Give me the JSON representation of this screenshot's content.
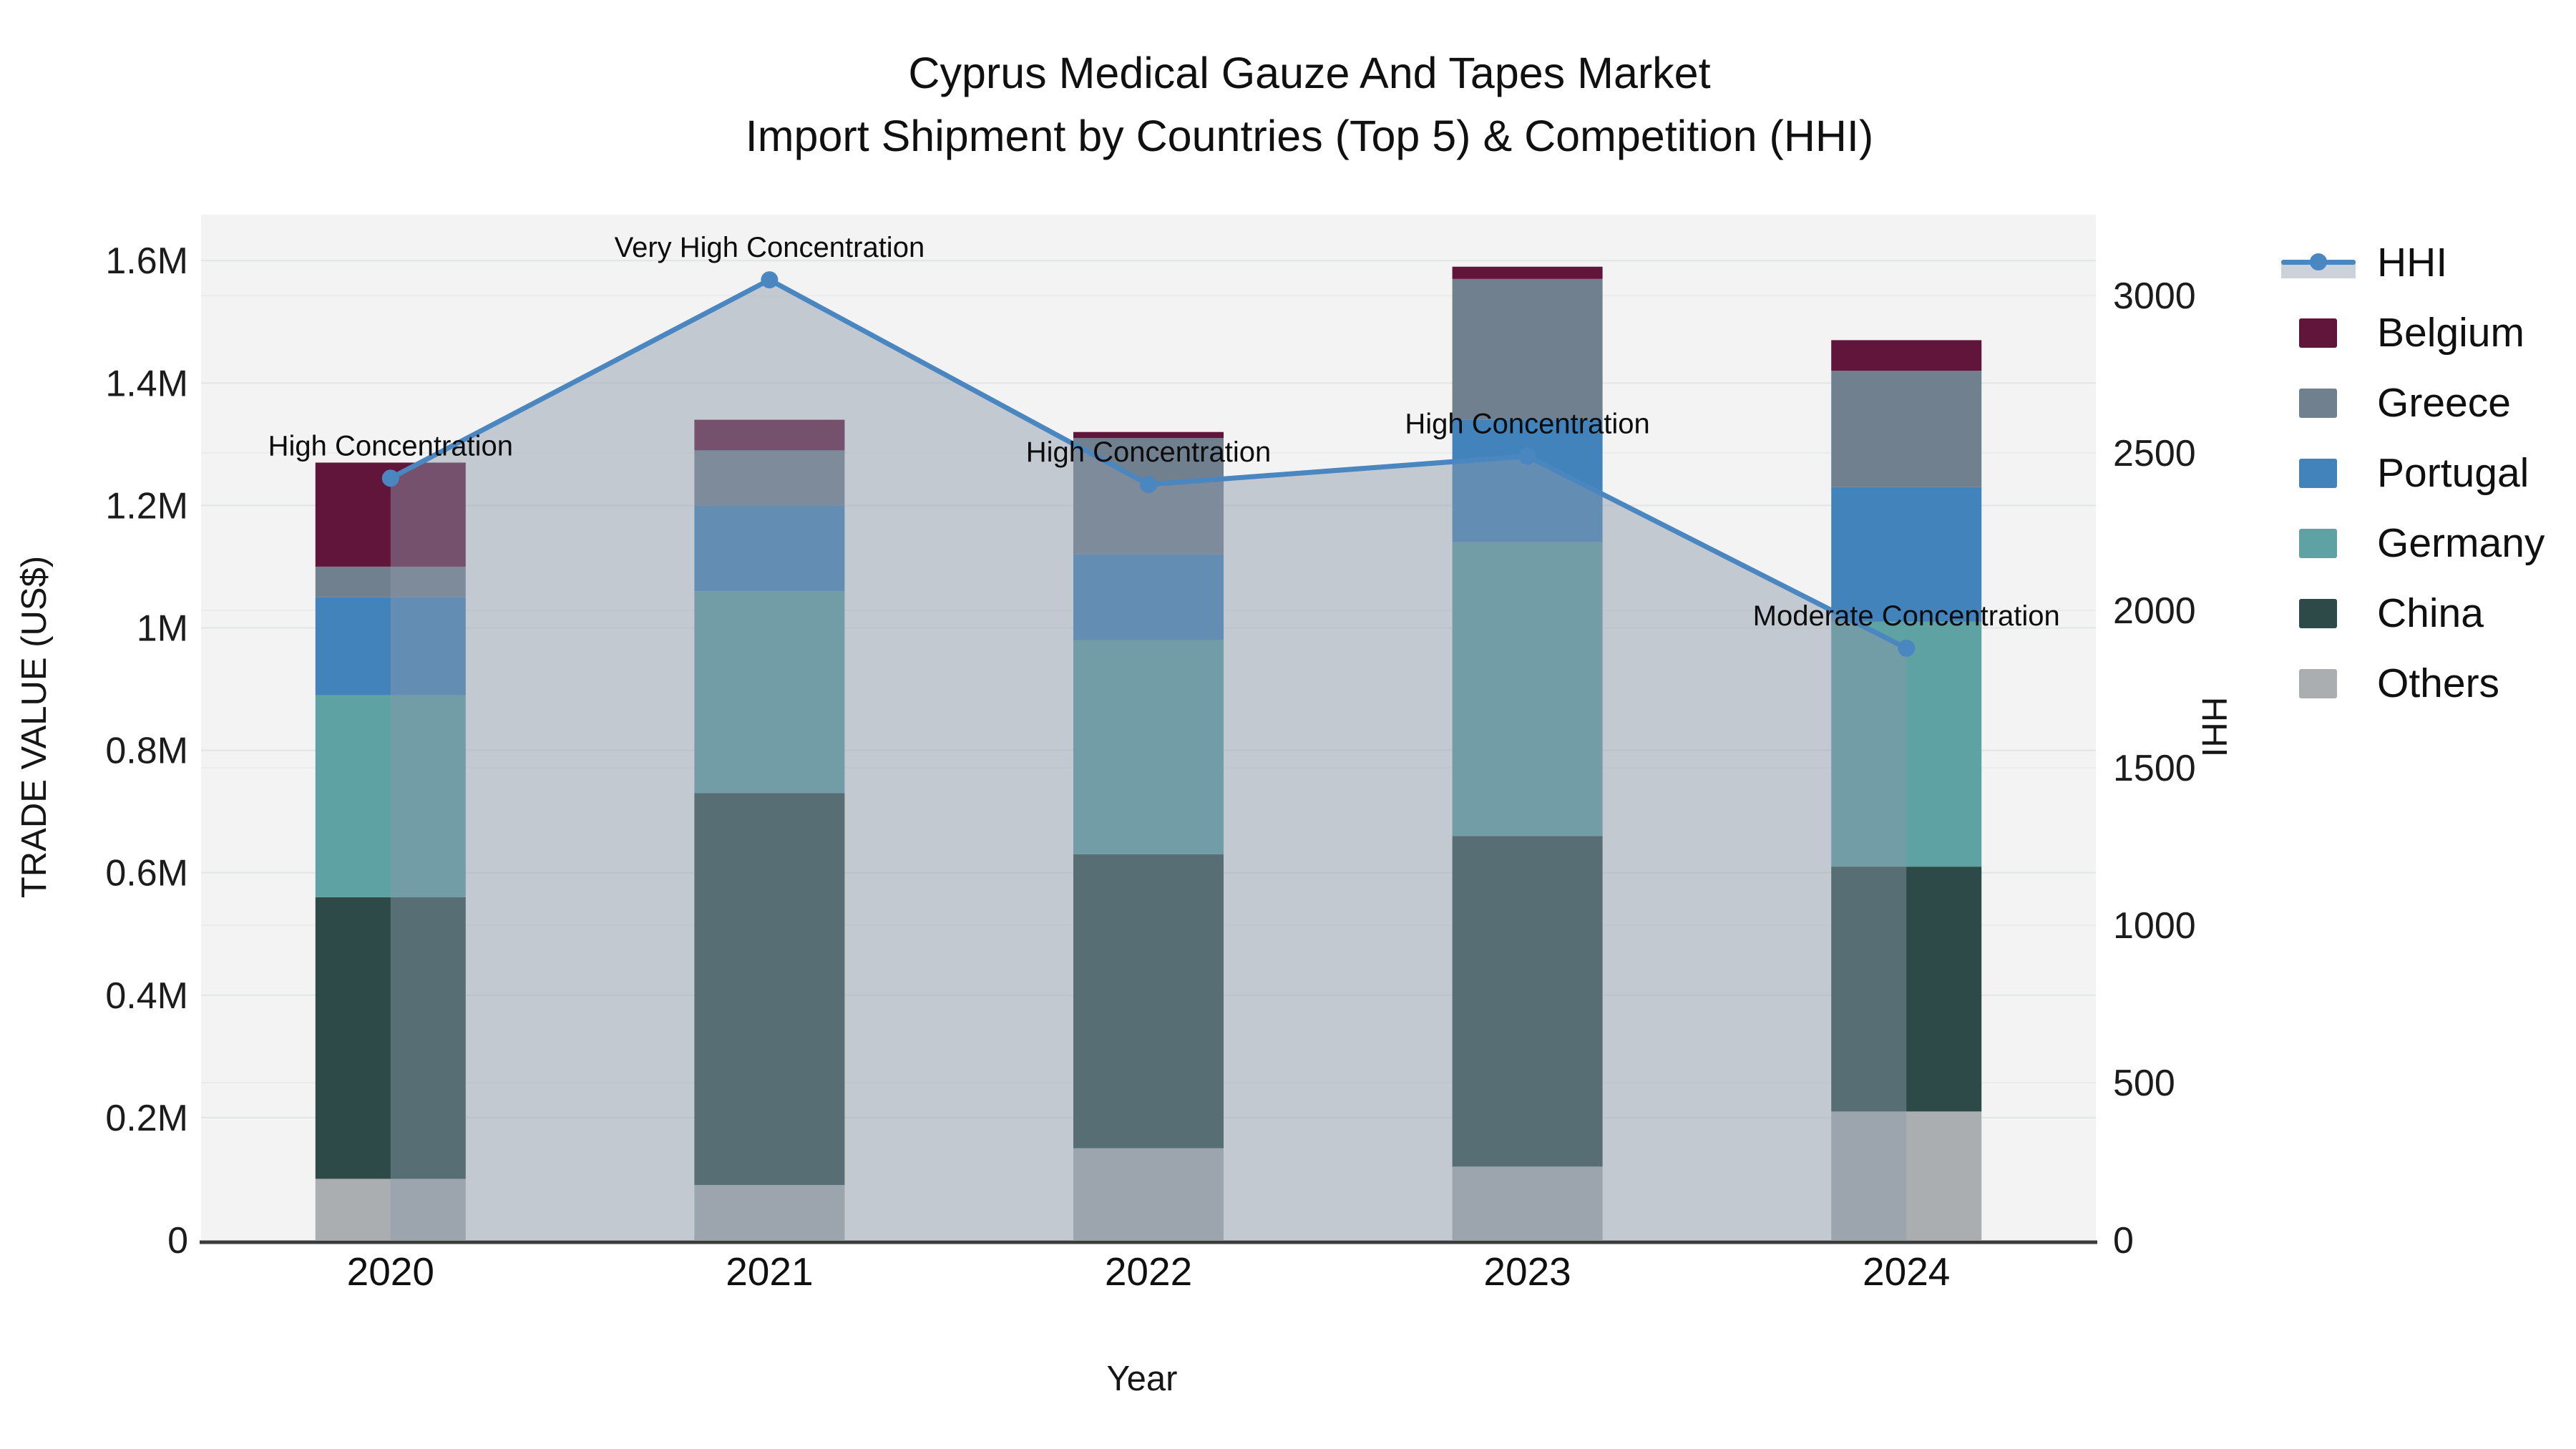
{
  "title": {
    "line1": "Cyprus Medical Gauze And Tapes Market",
    "line2": "Import Shipment by Countries (Top 5) & Competition (HHI)"
  },
  "axes": {
    "left": {
      "title": "TRADE VALUE (US$)"
    },
    "right": {
      "title": "HHI"
    },
    "x": {
      "title": "Year"
    }
  },
  "legend": {
    "items": [
      {
        "label": "HHI",
        "type": "line",
        "color": "#4a86c0"
      },
      {
        "label": "Belgium",
        "type": "swatch",
        "color": "#62153a"
      },
      {
        "label": "Greece",
        "type": "swatch",
        "color": "#71808f"
      },
      {
        "label": "Portugal",
        "type": "swatch",
        "color": "#4383bb"
      },
      {
        "label": "Germany",
        "type": "swatch",
        "color": "#5ea2a3"
      },
      {
        "label": "China",
        "type": "swatch",
        "color": "#2d4a49"
      },
      {
        "label": "Others",
        "type": "swatch",
        "color": "#abaeb0"
      }
    ]
  },
  "chart_data": {
    "type": "bar",
    "subtype": "stacked-bars-with-line-on-secondary-axis",
    "title": "Cyprus Medical Gauze And Tapes Market — Import Shipment by Countries (Top 5) & Competition (HHI)",
    "categories": [
      "2020",
      "2021",
      "2022",
      "2023",
      "2024"
    ],
    "stack_order_bottom_to_top": [
      "Others",
      "China",
      "Germany",
      "Portugal",
      "Greece",
      "Belgium"
    ],
    "series": [
      {
        "name": "Belgium",
        "color": "#62153a",
        "values": [
          170000,
          50000,
          10000,
          20000,
          50000
        ]
      },
      {
        "name": "Greece",
        "color": "#71808f",
        "values": [
          50000,
          90000,
          190000,
          230000,
          190000
        ]
      },
      {
        "name": "Portugal",
        "color": "#4383bb",
        "values": [
          160000,
          140000,
          140000,
          200000,
          220000
        ]
      },
      {
        "name": "Germany",
        "color": "#5ea2a3",
        "values": [
          330000,
          330000,
          350000,
          480000,
          400000
        ]
      },
      {
        "name": "China",
        "color": "#2d4a49",
        "values": [
          460000,
          640000,
          480000,
          540000,
          400000
        ]
      },
      {
        "name": "Others",
        "color": "#abaeb0",
        "values": [
          100000,
          90000,
          150000,
          120000,
          210000
        ]
      }
    ],
    "line_series": {
      "name": "HHI",
      "axis": "right",
      "color": "#4a86c0",
      "area_fill_color": "rgba(140,152,170,0.46)",
      "values": [
        2420,
        3050,
        2400,
        2490,
        1880
      ]
    },
    "annotations": [
      {
        "category": "2020",
        "text": "High Concentration"
      },
      {
        "category": "2021",
        "text": "Very High Concentration"
      },
      {
        "category": "2022",
        "text": "High Concentration"
      },
      {
        "category": "2023",
        "text": "High Concentration"
      },
      {
        "category": "2024",
        "text": "Moderate Concentration"
      }
    ],
    "xlabel": "Year",
    "ylabel": "TRADE VALUE (US$)",
    "y2label": "HHI",
    "ylim": [
      0,
      1675000
    ],
    "y2lim": [
      0,
      3257
    ],
    "yticks": {
      "values": [
        0,
        200000,
        400000,
        600000,
        800000,
        1000000,
        1200000,
        1400000,
        1600000
      ],
      "labels": [
        "0",
        "0.2M",
        "0.4M",
        "0.6M",
        "0.8M",
        "1M",
        "1.2M",
        "1.4M",
        "1.6M"
      ]
    },
    "y2ticks": {
      "values": [
        0,
        500,
        1000,
        1500,
        2000,
        2500,
        3000
      ],
      "labels": [
        "0",
        "500",
        "1000",
        "1500",
        "2000",
        "2500",
        "3000"
      ]
    },
    "grid": true,
    "legend_position": "right",
    "plot_bg_color": "#f2f3f2",
    "grid_color": "#e3e5e5",
    "axis_line_color": "#3b3b3b"
  }
}
